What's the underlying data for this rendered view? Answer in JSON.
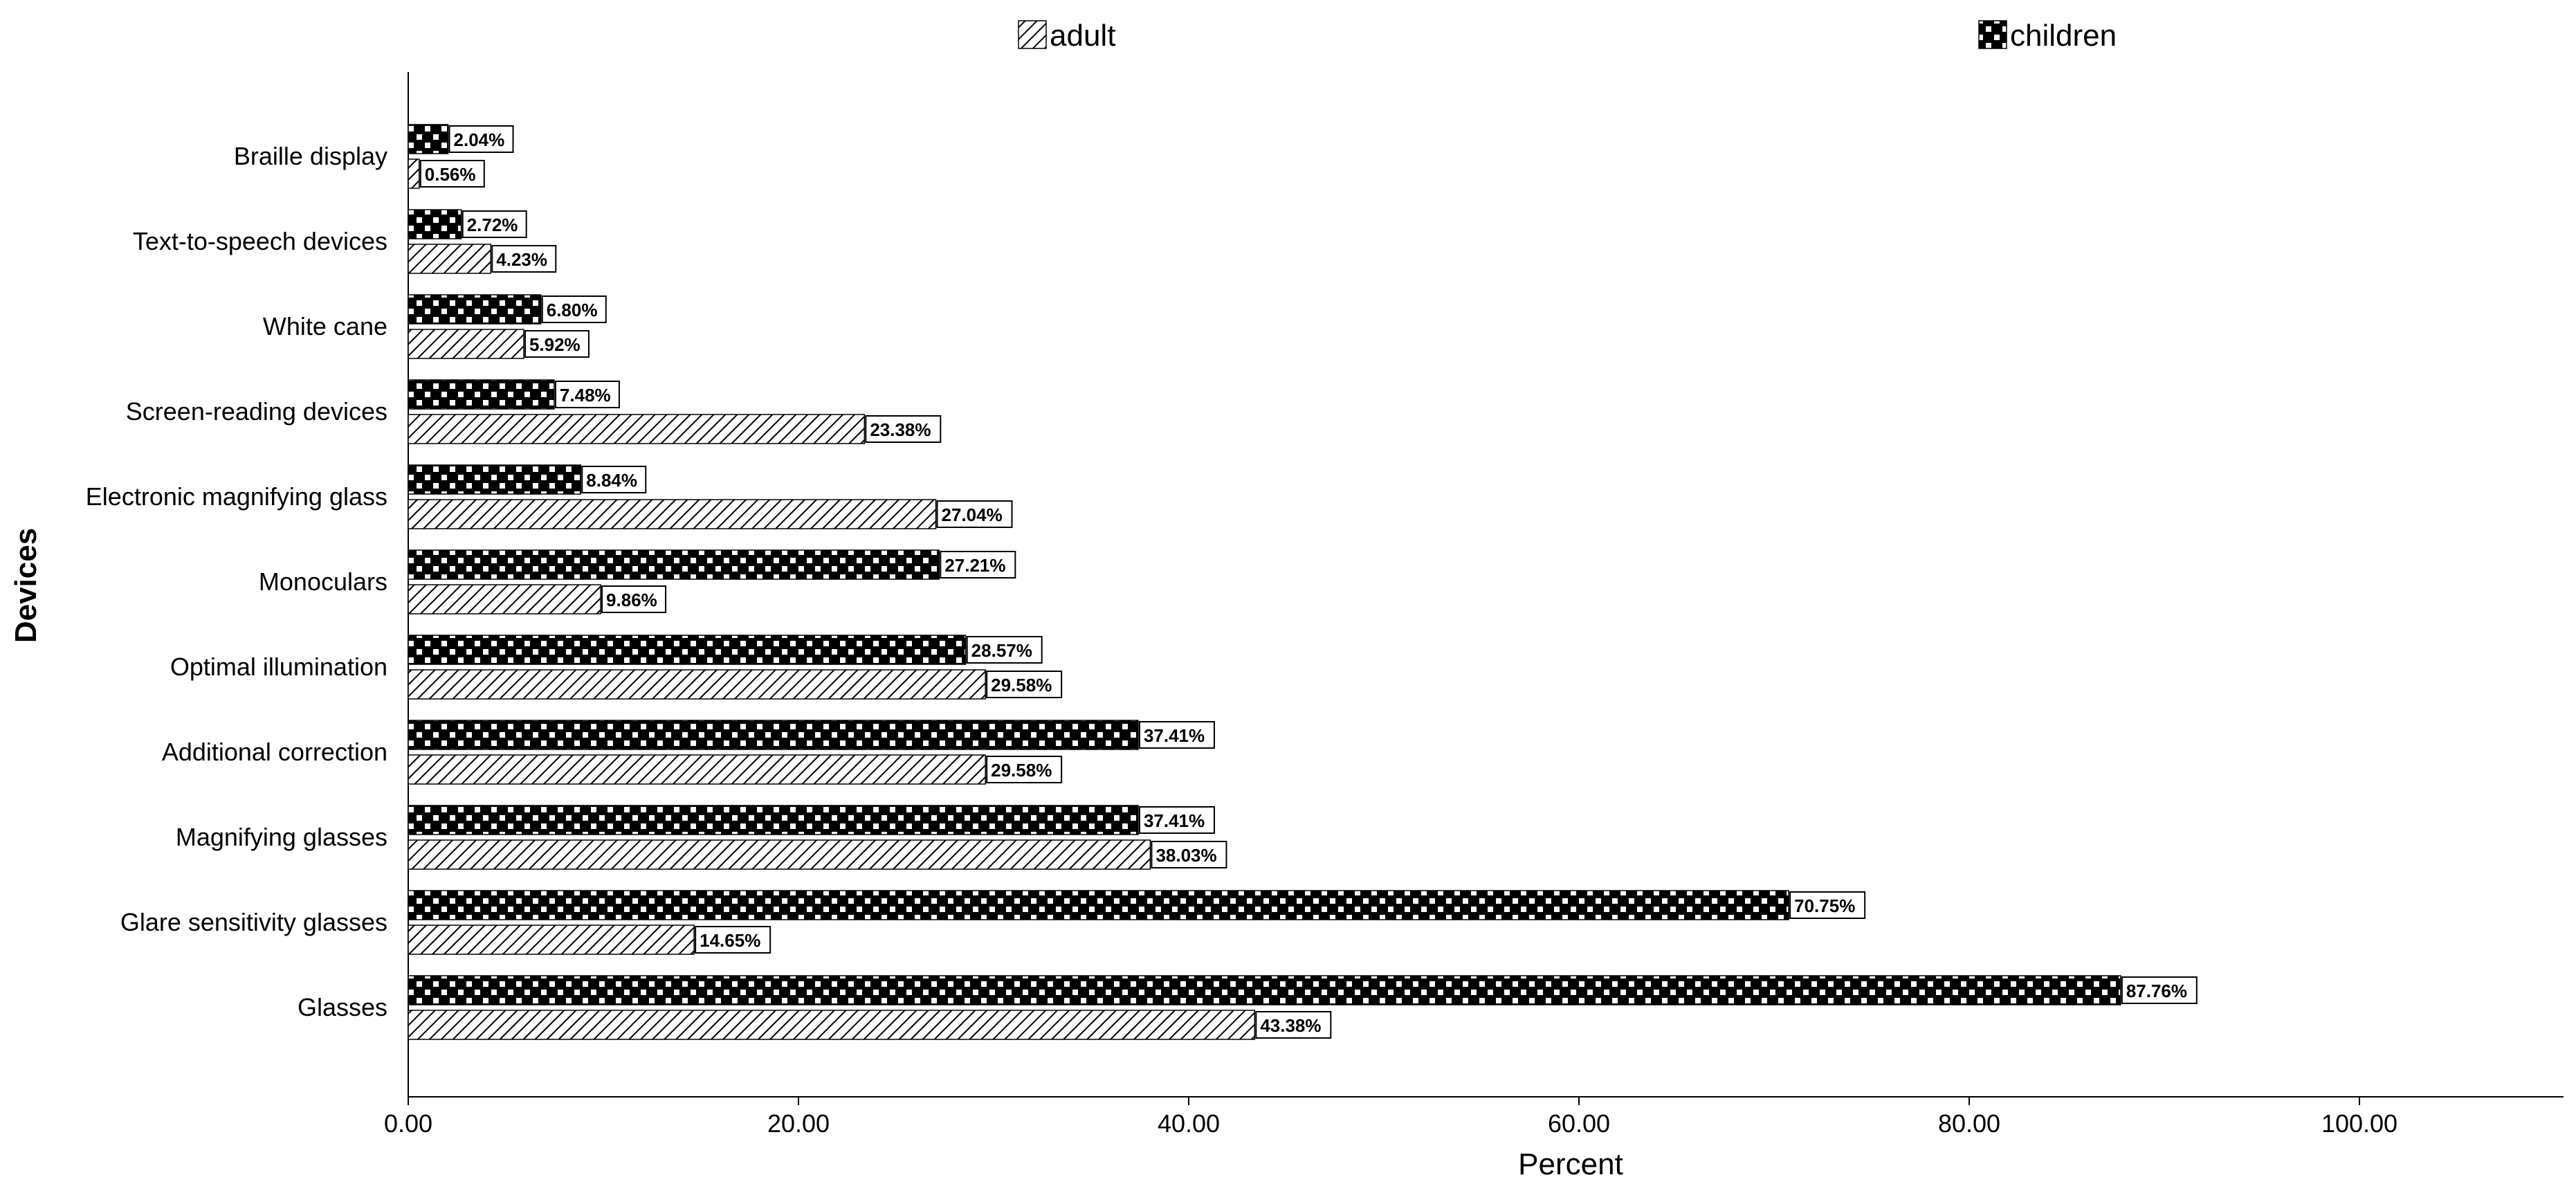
{
  "chart_data": {
    "type": "bar",
    "orientation": "horizontal",
    "title": "",
    "xlabel": "Percent",
    "ylabel": "Devices",
    "xlim": [
      0,
      110
    ],
    "xticks": [
      "0.00",
      "20.00",
      "40.00",
      "60.00",
      "80.00",
      "100.00"
    ],
    "grid": false,
    "legend_position": "top",
    "categories": [
      "Braille display",
      "Text-to-speech devices",
      "White cane",
      "Screen-reading devices",
      "Electronic magnifying glass",
      "Monoculars",
      "Optimal illumination",
      "Additional correction",
      "Magnifying glasses",
      "Glare sensitivity glasses",
      "Glasses"
    ],
    "series": [
      {
        "name": "adult",
        "pattern": "diagonal-hatch",
        "values": [
          0.56,
          4.23,
          5.92,
          23.38,
          27.04,
          9.86,
          29.58,
          29.58,
          38.03,
          14.65,
          43.38
        ],
        "labels": [
          "0.56%",
          "4.23%",
          "5.92%",
          "23.38%",
          "27.04%",
          "9.86%",
          "29.58%",
          "29.58%",
          "38.03%",
          "14.65%",
          "43.38%"
        ]
      },
      {
        "name": "children",
        "pattern": "checker",
        "values": [
          2.04,
          2.72,
          6.8,
          7.48,
          8.84,
          27.21,
          28.57,
          37.41,
          37.41,
          70.75,
          87.76
        ],
        "labels": [
          "2.04%",
          "2.72%",
          "6.80%",
          "7.48%",
          "8.84%",
          "27.21%",
          "28.57%",
          "37.41%",
          "37.41%",
          "70.75%",
          "87.76%"
        ]
      }
    ]
  }
}
